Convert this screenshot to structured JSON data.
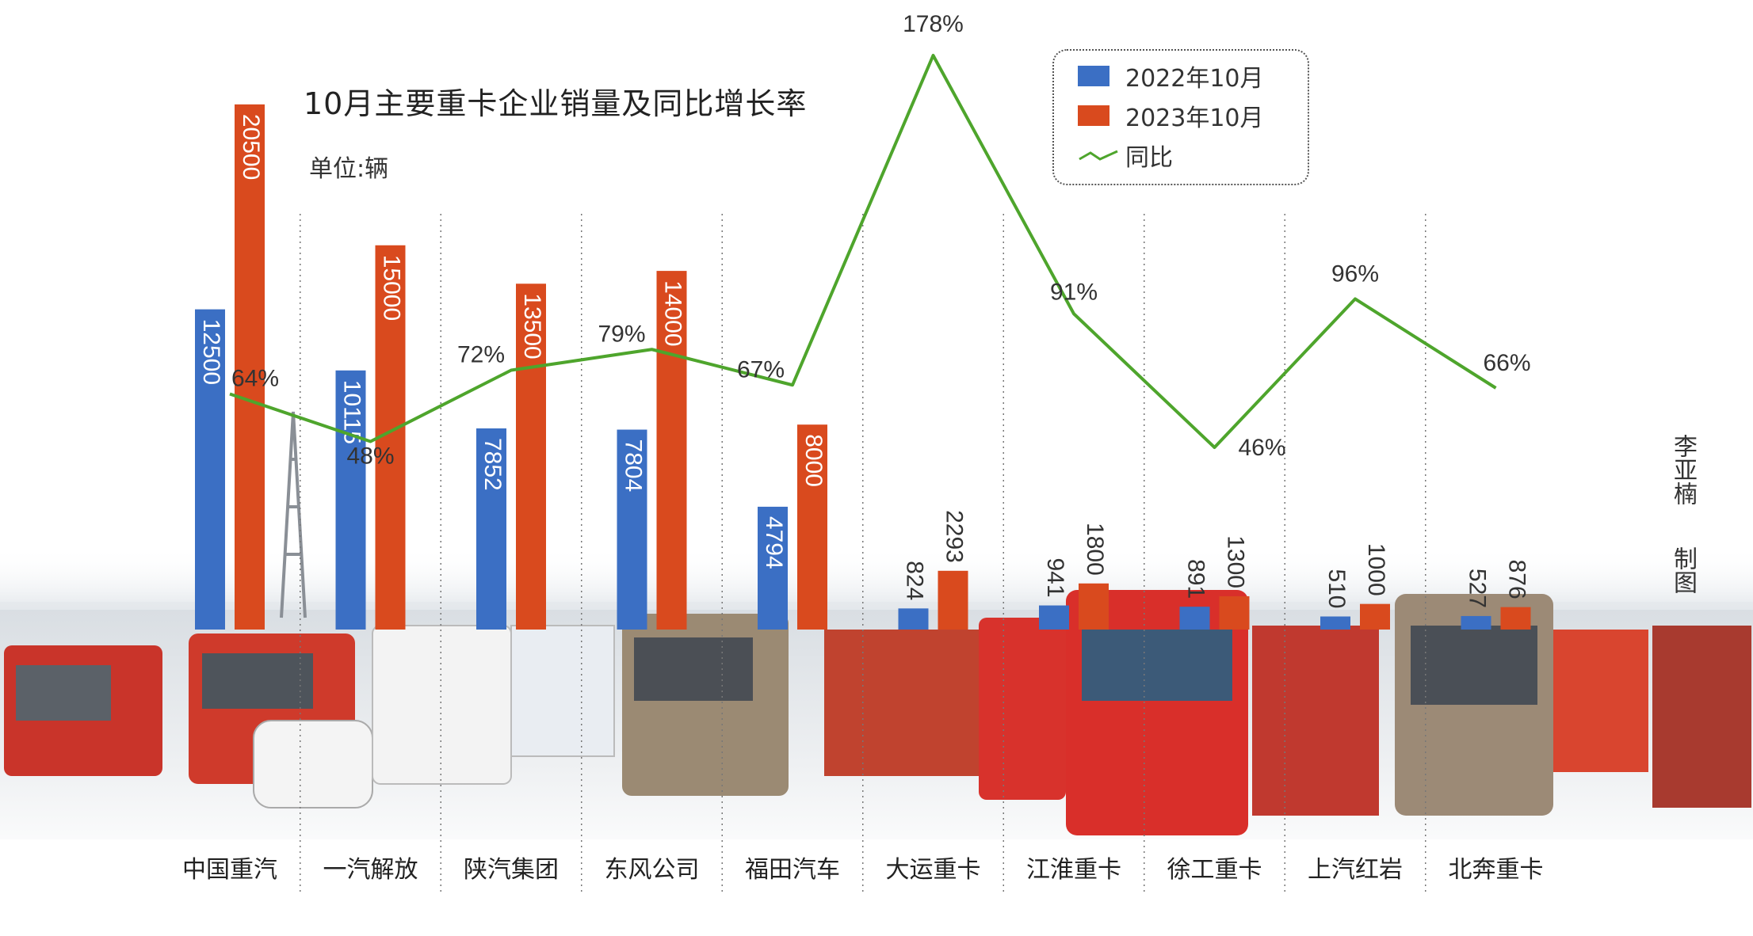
{
  "chart_data": {
    "type": "bar",
    "title": "10月主要重卡企业销量及同比增长率",
    "unit_label": "单位:辆",
    "categories": [
      "中国重汽",
      "一汽解放",
      "陕汽集团",
      "东风公司",
      "福田汽车",
      "大运重卡",
      "江淮重卡",
      "徐工重卡",
      "上汽红岩",
      "北奔重卡"
    ],
    "series": [
      {
        "name": "2022年10月",
        "values": [
          12500,
          10115,
          7852,
          7804,
          4794,
          824,
          941,
          891,
          510,
          527
        ],
        "color": "#3b6fc4"
      },
      {
        "name": "2023年10月",
        "values": [
          20500,
          15000,
          13500,
          14000,
          8000,
          2293,
          1800,
          1300,
          1000,
          876
        ],
        "color": "#d94a1e"
      }
    ],
    "bar_labels": [
      [
        "12500",
        "20500"
      ],
      [
        "10115",
        "15000"
      ],
      [
        "7852",
        "13500"
      ],
      [
        "7804",
        "14000"
      ],
      [
        "4794",
        "8000"
      ],
      [
        "824",
        "2293"
      ],
      [
        "941",
        "1800"
      ],
      [
        "891",
        "1300"
      ],
      [
        "510",
        "1000"
      ],
      [
        "527",
        "876"
      ]
    ],
    "line": {
      "name": "同比",
      "values": [
        64,
        48,
        72,
        79,
        67,
        178,
        91,
        46,
        96,
        66
      ],
      "labels": [
        "64%",
        "48%",
        "72%",
        "79%",
        "67%",
        "178%",
        "91%",
        "46%",
        "96%",
        "66%"
      ],
      "color": "#4ea52c"
    },
    "legend_placement": "top-right",
    "grid": false
  },
  "credit": {
    "name": "李亚楠",
    "role": "制图"
  }
}
